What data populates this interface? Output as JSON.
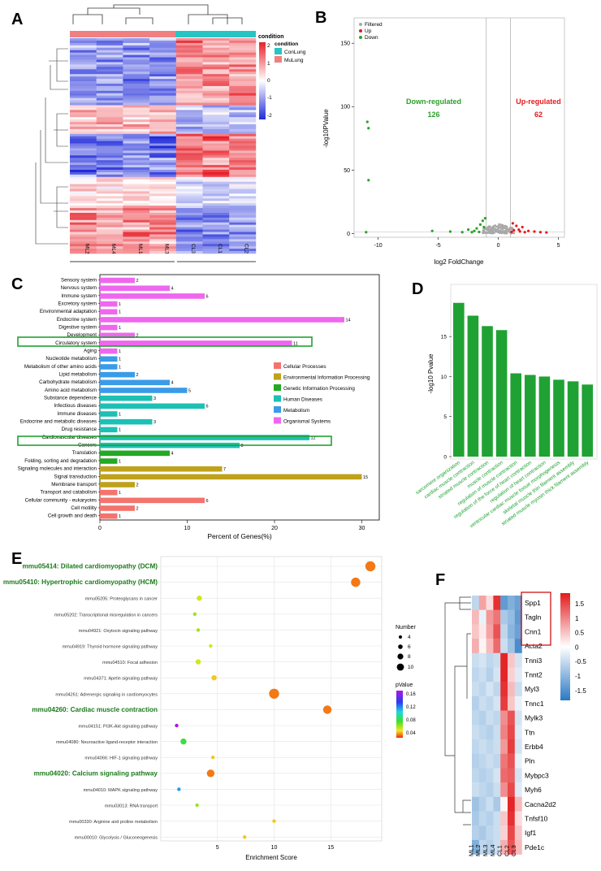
{
  "panels": {
    "A": "A",
    "B": "B",
    "C": "C",
    "D": "D",
    "E": "E",
    "F": "F"
  },
  "chart_data": [
    {
      "id": "A",
      "type": "heatmap",
      "columns": [
        "ML2",
        "ML4",
        "ML1",
        "ML3",
        "CL3",
        "CL1",
        "CL2"
      ],
      "legend_title": "condition",
      "legend_groups": [
        {
          "name": "ConLung",
          "color": "#27c4c4"
        },
        {
          "name": "MuLung",
          "color": "#f08080"
        }
      ],
      "scale_ticks": [
        "2",
        "1",
        "0",
        "-1",
        "-2"
      ],
      "colors": {
        "low": "#1f2bd9",
        "mid": "#ffffff",
        "high": "#e8202a"
      }
    },
    {
      "id": "B",
      "type": "scatter",
      "xlabel": "log2 FoldChange",
      "ylabel": "-log10PValue",
      "xticks": [
        "-10",
        "-5",
        "0",
        "5"
      ],
      "yticks": [
        "0",
        "50",
        "100",
        "150"
      ],
      "xlim": [
        -12,
        5.5
      ],
      "ylim": [
        -3,
        170
      ],
      "legend": [
        {
          "name": "Filtered",
          "color": "#a9a9a9"
        },
        {
          "name": "Up",
          "color": "#e41a1c"
        },
        {
          "name": "Down",
          "color": "#2ca02c"
        }
      ],
      "down_label": "Down-regulated",
      "down_count": "126",
      "up_label": "Up-regulated",
      "up_count": "62",
      "points_down": [
        [
          -10.9,
          88
        ],
        [
          -10.8,
          83
        ],
        [
          -10.8,
          42
        ],
        [
          -11,
          1
        ],
        [
          -5.5,
          2
        ],
        [
          -4,
          1.5
        ],
        [
          -3,
          1
        ],
        [
          -2.5,
          3
        ],
        [
          -2,
          2
        ],
        [
          -1.8,
          4
        ],
        [
          -1.5,
          7
        ],
        [
          -1.3,
          10
        ],
        [
          -1.2,
          5
        ],
        [
          -1.1,
          12
        ],
        [
          -1.6,
          1.2
        ],
        [
          -2.2,
          1
        ]
      ],
      "points_up": [
        [
          1.2,
          8
        ],
        [
          1.5,
          6
        ],
        [
          1.7,
          3
        ],
        [
          2,
          5
        ],
        [
          2.2,
          1
        ],
        [
          2.5,
          2
        ],
        [
          1.3,
          2.5
        ],
        [
          3,
          1.5
        ],
        [
          1.1,
          1.2
        ],
        [
          3.5,
          1
        ],
        [
          4,
          0.8
        ],
        [
          1.8,
          1.6
        ]
      ]
    },
    {
      "id": "C",
      "type": "bar",
      "xlabel": "Percent of Genes(%)",
      "xticks": [
        "0",
        "10",
        "20",
        "30"
      ],
      "xlim": [
        0,
        32
      ],
      "total_genes": 50,
      "categories": [
        "Sensory system",
        "Nervous system",
        "Immune system",
        "Excretory system",
        "Environmental adaptation",
        "Endocrine system",
        "Digestive system",
        "Development",
        "Circulatory system",
        "Aging",
        "Nucleotide metabolism",
        "Metabolism of other amino acids",
        "Lipid metabolism",
        "Carbohydrate metabolism",
        "Amino acid metabolism",
        "Substance dependence",
        "Infectious diseases",
        "Immune diseases",
        "Endocrine and metabolic diseases",
        "Drug resistance",
        "Cardiovascular diseases",
        "Cancers",
        "Translation",
        "Folding, sorting and degradation",
        "Signaling molecules and interaction",
        "Signal transduction",
        "Membrane transport",
        "Transport and catabolism",
        "Cellular community - eukaryotes",
        "Cell motility",
        "Cell growth and death"
      ],
      "values": [
        2,
        4,
        6,
        1,
        1,
        14,
        1,
        2,
        11,
        1,
        1,
        1,
        2,
        4,
        5,
        3,
        6,
        1,
        3,
        1,
        12,
        8,
        4,
        1,
        7,
        15,
        2,
        1,
        6,
        2,
        1
      ],
      "groups": [
        5,
        5,
        5,
        5,
        5,
        5,
        5,
        5,
        5,
        5,
        4,
        4,
        4,
        4,
        4,
        3,
        3,
        3,
        3,
        3,
        3,
        3,
        2,
        2,
        1,
        1,
        1,
        0,
        0,
        0,
        0
      ],
      "legend": [
        {
          "name": "Cellular Processes",
          "color": "#f4736c"
        },
        {
          "name": "Environmental Information Processing",
          "color": "#bfa21a"
        },
        {
          "name": "Genetic Information Processing",
          "color": "#23a923"
        },
        {
          "name": "Human Diseases",
          "color": "#1cc0b4"
        },
        {
          "name": "Metabolism",
          "color": "#3a9be8"
        },
        {
          "name": "Organismal Systems",
          "color": "#ef67ee"
        }
      ]
    },
    {
      "id": "D",
      "type": "bar",
      "ylabel": "-log10 Pvalue",
      "yticks": [
        "0",
        "5",
        "10",
        "15"
      ],
      "ylim": [
        0,
        21
      ],
      "categories": [
        "sarcomere organization",
        "cardiac muscle contraction",
        "striated muscle contraction",
        "muscle contraction",
        "regulation of muscle contraction",
        "regulation of the force of heart contraction",
        "regulation of heart contraction",
        "ventricular cardiac muscle tissue morphogenesis",
        "skeletal muscle thin filament assembly",
        "striated muscle myosin thick filament assembly"
      ],
      "values": [
        19.2,
        17.6,
        16.3,
        15.8,
        10.4,
        10.2,
        10.0,
        9.6,
        9.4,
        9.0
      ],
      "color": "#1fa233"
    },
    {
      "id": "E",
      "type": "scatter",
      "xlabel": "Enrichment Score",
      "xticks": [
        "5",
        "10",
        "15"
      ],
      "xlim": [
        0,
        19.5
      ],
      "categories": [
        "mmu05414: Dilated cardiomyopathy (DCM)",
        "mmu05410: Hypertrophic cardiomyopathy (HCM)",
        "mmu05205: Proteoglycans in cancer",
        "mmu05202: Transcriptional misregulation in cancers",
        "mmu04921: Oxytocin signaling pathway",
        "mmu04919: Thyroid hormone signaling pathway",
        "mmu04510: Focal adhesion",
        "mmu04371: Apelin signaling pathway",
        "mmu04261: Adrenergic signaling in cardiomyocytes",
        "mmu04260: Cardiac muscle contraction",
        "mmu04151: PI3K-Akt signaling pathway",
        "mmu04080: Neuroactive ligand-receptor interaction",
        "mmu04066: HIF-1 signaling pathway",
        "mmu04020: Calcium signaling pathway",
        "mmu04010: MAPK signaling pathway",
        "mmu03013: RNA transport",
        "mmu00330: Arginine and proline metabolism",
        "mmu00010: Glycolysis / Gluconeogenesis"
      ],
      "highlight": [
        true,
        true,
        false,
        false,
        false,
        false,
        false,
        false,
        false,
        true,
        false,
        false,
        false,
        true,
        false,
        false,
        false,
        false
      ],
      "x": [
        18.5,
        17.2,
        3.4,
        3.0,
        3.3,
        4.4,
        3.3,
        4.7,
        10.0,
        14.7,
        1.4,
        2.0,
        4.6,
        4.4,
        1.6,
        3.2,
        10.0,
        7.4
      ],
      "size": [
        10,
        9,
        4,
        2,
        2,
        2,
        4,
        4,
        10,
        8,
        2,
        5,
        2,
        7,
        2,
        2,
        2,
        2
      ],
      "pvalue": [
        0.01,
        0.01,
        0.03,
        0.04,
        0.04,
        0.03,
        0.03,
        0.02,
        0.01,
        0.01,
        0.16,
        0.06,
        0.02,
        0.01,
        0.1,
        0.04,
        0.02,
        0.02
      ],
      "size_legend_title": "Number",
      "size_legend": [
        "4",
        "6",
        "8",
        "10"
      ],
      "color_legend_title": "pValue",
      "color_legend": [
        "0.16",
        "0.12",
        "0.08",
        "0.04"
      ]
    },
    {
      "id": "F",
      "type": "heatmap",
      "rows": [
        "Spp1",
        "Tagln",
        "Cnn1",
        "Acta2",
        "Tnni3",
        "Tnnt2",
        "Myl3",
        "Tnnc1",
        "Mylk3",
        "Ttn",
        "Erbb4",
        "Pln",
        "Mybpc3",
        "Myh6",
        "Cacna2d2",
        "Tnfsf10",
        "Igf1",
        "Pde1c"
      ],
      "columns": [
        "ML1",
        "ML2",
        "ML3",
        "ML4",
        "CL1",
        "CL2",
        "CL3"
      ],
      "values": [
        [
          -0.6,
          0.8,
          0.3,
          1.8,
          -1.5,
          -1.2,
          -1.4
        ],
        [
          0.6,
          -0.2,
          0.9,
          1.2,
          -0.8,
          -1.0,
          -1.5
        ],
        [
          0.5,
          0.2,
          0.8,
          1.5,
          -0.6,
          -1.1,
          -1.4
        ],
        [
          0.7,
          0.1,
          0.6,
          1.3,
          -0.5,
          -0.9,
          -1.7
        ],
        [
          -0.5,
          -0.4,
          -0.6,
          -0.5,
          1.9,
          0.5,
          -0.4
        ],
        [
          -0.6,
          -0.5,
          -0.7,
          -0.4,
          1.9,
          0.4,
          -0.3
        ],
        [
          -0.5,
          -0.6,
          -0.4,
          -0.6,
          1.8,
          0.6,
          -0.5
        ],
        [
          -0.7,
          -0.5,
          -0.6,
          -0.4,
          1.7,
          0.5,
          -0.2
        ],
        [
          -0.6,
          -0.7,
          -0.5,
          -0.6,
          1.0,
          1.5,
          -0.4
        ],
        [
          -0.5,
          -0.6,
          -0.7,
          -0.5,
          1.1,
          1.6,
          -0.3
        ],
        [
          -0.6,
          -0.5,
          -0.6,
          -0.5,
          0.9,
          1.7,
          -0.4
        ],
        [
          -0.7,
          -0.6,
          -0.5,
          -0.6,
          1.2,
          1.5,
          -0.2
        ],
        [
          -0.6,
          -0.7,
          -0.6,
          -0.4,
          1.3,
          1.4,
          -0.4
        ],
        [
          -0.5,
          -0.6,
          -0.7,
          -0.5,
          1.0,
          1.6,
          -0.3
        ],
        [
          -0.9,
          -0.7,
          -0.5,
          -0.8,
          0.1,
          1.9,
          0.6
        ],
        [
          -0.8,
          -0.6,
          -0.7,
          -0.5,
          0.5,
          1.8,
          0.3
        ],
        [
          -0.7,
          -0.8,
          -0.6,
          -0.5,
          0.4,
          1.6,
          0.5
        ],
        [
          -1.2,
          -0.6,
          -0.7,
          -0.5,
          0.7,
          1.5,
          0.6
        ]
      ],
      "highlight_rows": [
        "Spp1",
        "Tagln",
        "Cnn1",
        "Acta2"
      ],
      "scale_ticks": [
        "1.5",
        "1",
        "0.5",
        "0",
        "-0.5",
        "-1",
        "-1.5"
      ],
      "colors": {
        "low": "#2b79c2",
        "mid": "#ffffff",
        "high": "#e31a1c"
      }
    }
  ]
}
